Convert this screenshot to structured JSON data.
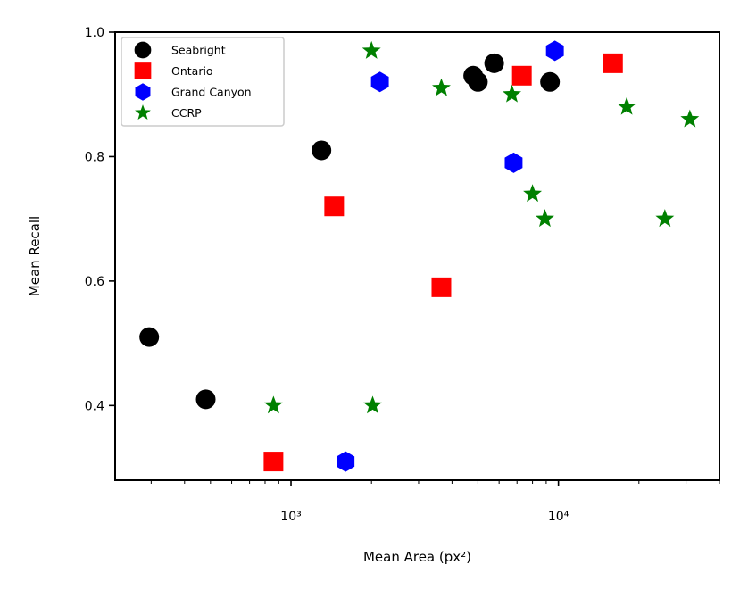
{
  "chart_data": {
    "type": "scatter",
    "title": "",
    "xlabel": "Mean Area (px²)",
    "ylabel": "Mean Recall",
    "xscale": "log",
    "xlim": [
      220,
      40000
    ],
    "ylim": [
      0.28,
      1.0
    ],
    "xticks": [
      {
        "value": 1000,
        "label": "10³"
      },
      {
        "value": 10000,
        "label": "10⁴"
      }
    ],
    "yticks": [
      {
        "value": 0.4,
        "label": "0.4"
      },
      {
        "value": 0.6,
        "label": "0.6"
      },
      {
        "value": 0.8,
        "label": "0.8"
      },
      {
        "value": 1.0,
        "label": "1.0"
      }
    ],
    "grid": false,
    "legend_position": "top-left",
    "series": [
      {
        "name": "Seabright",
        "marker": "circle",
        "color": "#000000",
        "points": [
          {
            "x": 295,
            "y": 0.51
          },
          {
            "x": 480,
            "y": 0.41
          },
          {
            "x": 1300,
            "y": 0.81
          },
          {
            "x": 4800,
            "y": 0.93
          },
          {
            "x": 5000,
            "y": 0.92
          },
          {
            "x": 5750,
            "y": 0.95
          },
          {
            "x": 9300,
            "y": 0.92
          }
        ]
      },
      {
        "name": "Ontario",
        "marker": "square",
        "color": "#ff0000",
        "points": [
          {
            "x": 860,
            "y": 0.31
          },
          {
            "x": 1450,
            "y": 0.72
          },
          {
            "x": 3650,
            "y": 0.59
          },
          {
            "x": 7300,
            "y": 0.93
          },
          {
            "x": 16000,
            "y": 0.95
          }
        ]
      },
      {
        "name": "Grand Canyon",
        "marker": "hexagon",
        "color": "#0000ff",
        "points": [
          {
            "x": 1600,
            "y": 0.31
          },
          {
            "x": 2150,
            "y": 0.92
          },
          {
            "x": 6800,
            "y": 0.79
          },
          {
            "x": 9700,
            "y": 0.97
          }
        ]
      },
      {
        "name": "CCRP",
        "marker": "star",
        "color": "#008000",
        "points": [
          {
            "x": 860,
            "y": 0.4
          },
          {
            "x": 2000,
            "y": 0.97
          },
          {
            "x": 2020,
            "y": 0.4
          },
          {
            "x": 3650,
            "y": 0.91
          },
          {
            "x": 6700,
            "y": 0.9
          },
          {
            "x": 8000,
            "y": 0.74
          },
          {
            "x": 8900,
            "y": 0.7
          },
          {
            "x": 18000,
            "y": 0.88
          },
          {
            "x": 25000,
            "y": 0.7
          },
          {
            "x": 31000,
            "y": 0.86
          }
        ]
      }
    ]
  }
}
